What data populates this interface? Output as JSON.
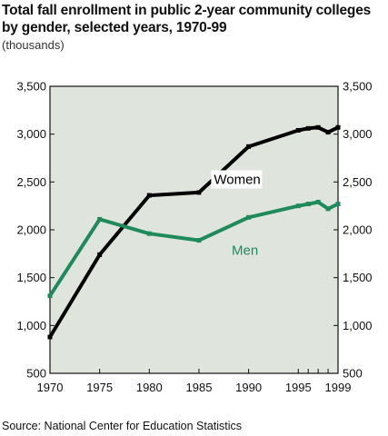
{
  "chart_data": {
    "type": "line",
    "title": "Total fall enrollment in public 2-year community colleges by gender, selected years, 1970-99",
    "subtitle": "(thousands)",
    "source": "Source: National Center for Education Statistics",
    "x": [
      1970,
      1975,
      1980,
      1985,
      1990,
      1995,
      1996,
      1997,
      1998,
      1999
    ],
    "x_ticks": [
      "1970",
      "1975",
      "1980",
      "1985",
      "1990",
      "1995",
      "1999"
    ],
    "y_ticks": [
      "500",
      "1,000",
      "1,500",
      "2,000",
      "2,500",
      "3,000",
      "3,500"
    ],
    "xlim": [
      1970,
      1999
    ],
    "ylim": [
      500,
      3500
    ],
    "grid": false,
    "plot_background": "#dfe5dc",
    "series": [
      {
        "name": "Women",
        "color": "#000000",
        "values": [
          880,
          1740,
          2360,
          2390,
          2870,
          3040,
          3060,
          3070,
          3020,
          3070
        ]
      },
      {
        "name": "Men",
        "color": "#1f8a5c",
        "values": [
          1310,
          2110,
          1960,
          1890,
          2130,
          2250,
          2270,
          2290,
          2220,
          2270
        ]
      }
    ]
  }
}
